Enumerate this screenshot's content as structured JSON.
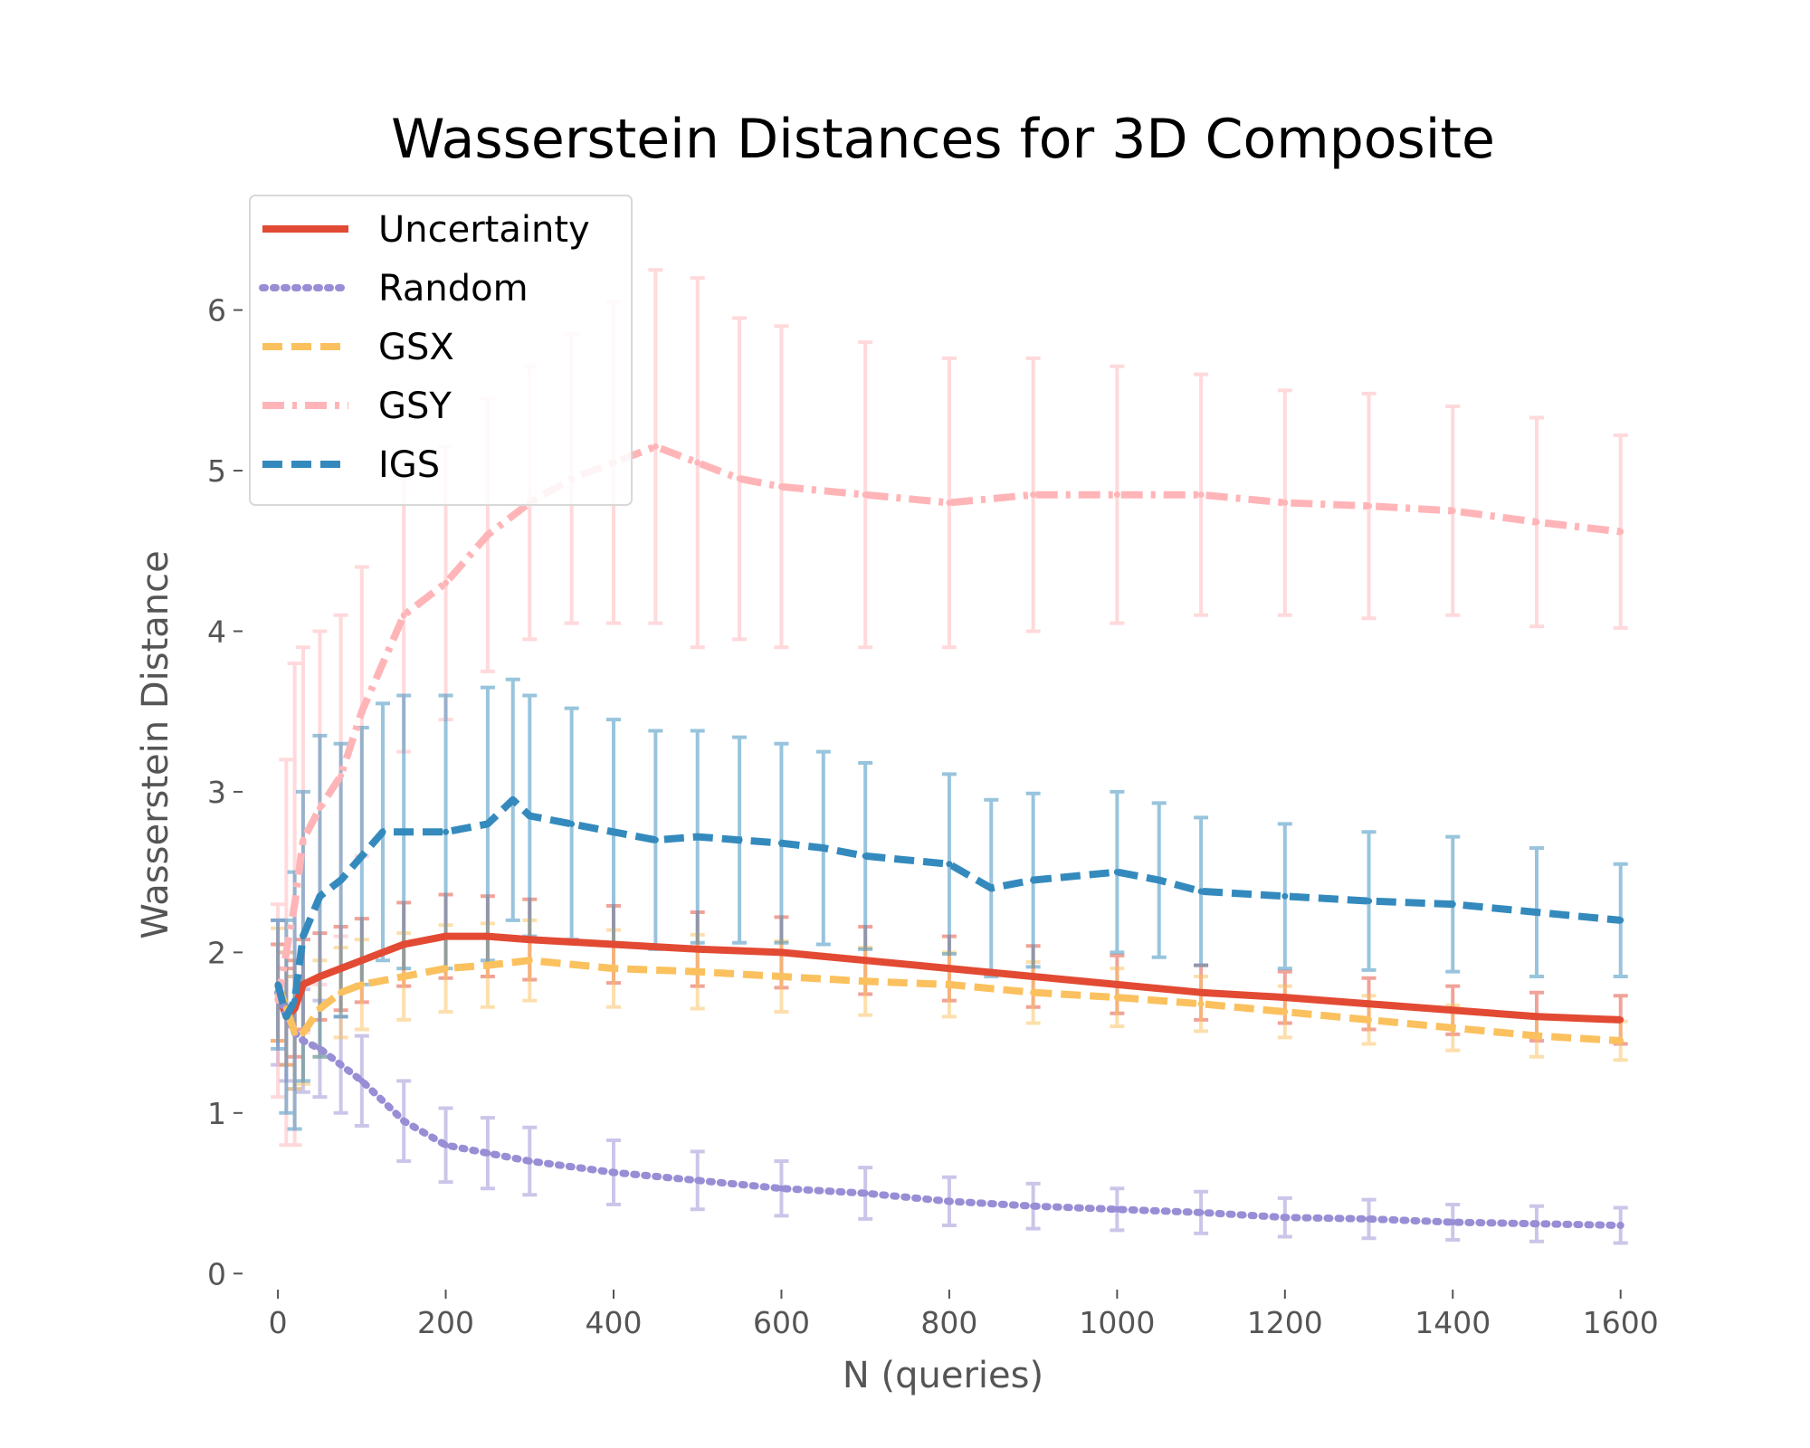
{
  "chart_data": {
    "type": "line",
    "title": "Wasserstein Distances for 3D Composite",
    "xlabel": "N (queries)",
    "ylabel": "Wasserstein Distance",
    "xlim": [
      -40,
      1610
    ],
    "ylim": [
      -0.1,
      6.55
    ],
    "xticks": [
      0,
      200,
      400,
      600,
      800,
      1000,
      1200,
      1400,
      1600
    ],
    "yticks": [
      0,
      1,
      2,
      3,
      4,
      5,
      6
    ],
    "grid": false,
    "legend_position": "upper-left",
    "series": [
      {
        "name": "Uncertainty",
        "color": "#E24A33",
        "dash": "solid",
        "x": [
          0,
          10,
          20,
          30,
          50,
          75,
          100,
          150,
          200,
          250,
          300,
          400,
          500,
          600,
          700,
          800,
          900,
          1000,
          1100,
          1200,
          1300,
          1400,
          1500,
          1600
        ],
        "y": [
          1.75,
          1.6,
          1.65,
          1.8,
          1.85,
          1.9,
          1.95,
          2.05,
          2.1,
          2.1,
          2.08,
          2.05,
          2.02,
          2.0,
          1.95,
          1.9,
          1.85,
          1.8,
          1.75,
          1.72,
          1.68,
          1.64,
          1.6,
          1.58
        ],
        "err": [
          0.3,
          0.3,
          0.3,
          0.28,
          0.27,
          0.26,
          0.26,
          0.26,
          0.26,
          0.25,
          0.25,
          0.24,
          0.23,
          0.22,
          0.21,
          0.2,
          0.19,
          0.18,
          0.17,
          0.16,
          0.16,
          0.15,
          0.15,
          0.15
        ]
      },
      {
        "name": "Random",
        "color": "#988ED5",
        "dash": "dotted",
        "x": [
          0,
          10,
          20,
          30,
          50,
          75,
          100,
          150,
          200,
          250,
          300,
          400,
          500,
          600,
          700,
          800,
          900,
          1000,
          1100,
          1200,
          1300,
          1400,
          1500,
          1600
        ],
        "y": [
          1.75,
          1.6,
          1.5,
          1.45,
          1.4,
          1.3,
          1.2,
          0.95,
          0.8,
          0.75,
          0.7,
          0.63,
          0.58,
          0.53,
          0.5,
          0.45,
          0.42,
          0.4,
          0.38,
          0.35,
          0.34,
          0.32,
          0.31,
          0.3
        ],
        "err": [
          0.45,
          0.4,
          0.35,
          0.32,
          0.3,
          0.3,
          0.28,
          0.25,
          0.23,
          0.22,
          0.21,
          0.2,
          0.18,
          0.17,
          0.16,
          0.15,
          0.14,
          0.13,
          0.13,
          0.12,
          0.12,
          0.11,
          0.11,
          0.11
        ]
      },
      {
        "name": "GSX",
        "color": "#FBC15E",
        "dash": "dashed",
        "x": [
          0,
          10,
          20,
          30,
          50,
          75,
          100,
          150,
          200,
          250,
          300,
          400,
          500,
          600,
          700,
          800,
          900,
          1000,
          1100,
          1200,
          1300,
          1400,
          1500,
          1600
        ],
        "y": [
          1.8,
          1.65,
          1.5,
          1.5,
          1.65,
          1.75,
          1.8,
          1.85,
          1.9,
          1.92,
          1.95,
          1.9,
          1.88,
          1.85,
          1.82,
          1.8,
          1.75,
          1.72,
          1.68,
          1.63,
          1.58,
          1.53,
          1.48,
          1.45
        ],
        "err": [
          0.35,
          0.35,
          0.35,
          0.32,
          0.3,
          0.28,
          0.28,
          0.27,
          0.27,
          0.26,
          0.25,
          0.24,
          0.23,
          0.22,
          0.21,
          0.2,
          0.19,
          0.18,
          0.17,
          0.16,
          0.15,
          0.14,
          0.13,
          0.12
        ]
      },
      {
        "name": "GSY",
        "color": "#FFB5B8",
        "dash": "dashdot",
        "x": [
          0,
          10,
          20,
          30,
          50,
          75,
          100,
          150,
          200,
          250,
          300,
          350,
          400,
          450,
          500,
          550,
          600,
          700,
          800,
          900,
          1000,
          1100,
          1200,
          1300,
          1400,
          1500,
          1600
        ],
        "y": [
          1.7,
          2.0,
          2.3,
          2.7,
          2.9,
          3.1,
          3.5,
          4.1,
          4.3,
          4.6,
          4.8,
          4.95,
          5.05,
          5.15,
          5.05,
          4.95,
          4.9,
          4.85,
          4.8,
          4.85,
          4.85,
          4.85,
          4.8,
          4.78,
          4.75,
          4.68,
          4.62
        ],
        "err": [
          0.6,
          1.2,
          1.5,
          1.2,
          1.1,
          1.0,
          0.9,
          0.85,
          0.85,
          0.85,
          0.85,
          0.9,
          1.0,
          1.1,
          1.15,
          1.0,
          1.0,
          0.95,
          0.9,
          0.85,
          0.8,
          0.75,
          0.7,
          0.7,
          0.65,
          0.65,
          0.6
        ]
      },
      {
        "name": "IGS",
        "color": "#348ABD",
        "dash": "dashed",
        "x": [
          0,
          10,
          20,
          30,
          50,
          75,
          100,
          125,
          150,
          200,
          250,
          280,
          300,
          350,
          400,
          450,
          500,
          550,
          600,
          650,
          700,
          800,
          850,
          900,
          1000,
          1050,
          1100,
          1200,
          1300,
          1400,
          1500,
          1600
        ],
        "y": [
          1.8,
          1.6,
          1.7,
          2.1,
          2.35,
          2.45,
          2.6,
          2.75,
          2.75,
          2.75,
          2.8,
          2.95,
          2.85,
          2.8,
          2.75,
          2.7,
          2.72,
          2.7,
          2.68,
          2.65,
          2.6,
          2.55,
          2.4,
          2.45,
          2.5,
          2.45,
          2.38,
          2.35,
          2.32,
          2.3,
          2.25,
          2.2
        ],
        "err": [
          0.4,
          0.6,
          0.8,
          0.9,
          1.0,
          0.85,
          0.8,
          0.8,
          0.85,
          0.85,
          0.85,
          0.75,
          0.75,
          0.72,
          0.7,
          0.68,
          0.66,
          0.64,
          0.62,
          0.6,
          0.58,
          0.56,
          0.55,
          0.54,
          0.5,
          0.48,
          0.46,
          0.45,
          0.43,
          0.42,
          0.4,
          0.35
        ]
      }
    ]
  }
}
